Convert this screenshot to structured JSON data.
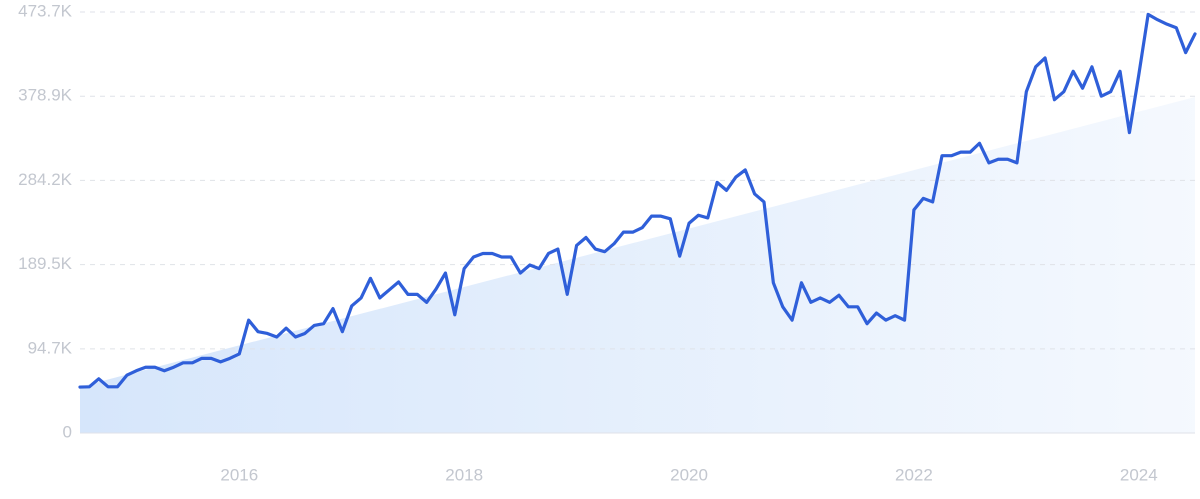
{
  "chart_data": {
    "type": "line",
    "categories": [
      null,
      null,
      null,
      null,
      null,
      null,
      null,
      null,
      null,
      null,
      null,
      null,
      null,
      null,
      null,
      null,
      null,
      "2016",
      null,
      null,
      null,
      null,
      null,
      null,
      null,
      null,
      null,
      null,
      null,
      null,
      null,
      null,
      null,
      null,
      null,
      null,
      null,
      null,
      null,
      null,
      null,
      "2018",
      null,
      null,
      null,
      null,
      null,
      null,
      null,
      null,
      null,
      null,
      null,
      null,
      null,
      null,
      null,
      null,
      null,
      null,
      null,
      null,
      null,
      null,
      null,
      "2020",
      null,
      null,
      null,
      null,
      null,
      null,
      null,
      null,
      null,
      null,
      null,
      null,
      null,
      null,
      null,
      null,
      null,
      null,
      null,
      null,
      null,
      null,
      null,
      "2022",
      null,
      null,
      null,
      null,
      null,
      null,
      null,
      null,
      null,
      null,
      null,
      null,
      null,
      null,
      null,
      null,
      null,
      null,
      null,
      null,
      null,
      null,
      null,
      "2024",
      null,
      null,
      null,
      null,
      null,
      null
    ],
    "series": [
      {
        "color": "#2f5fd9",
        "values": [
          51700,
          52000,
          61000,
          52000,
          52000,
          65000,
          70000,
          74000,
          74000,
          70000,
          74000,
          79000,
          79000,
          84000,
          84000,
          80000,
          84000,
          89000,
          127000,
          114000,
          112000,
          108000,
          118000,
          108000,
          112000,
          121000,
          123000,
          140000,
          114000,
          143000,
          152000,
          174000,
          152000,
          161000,
          170000,
          156000,
          156000,
          147000,
          162000,
          180000,
          133000,
          185000,
          198000,
          202000,
          202000,
          198000,
          198000,
          180000,
          189000,
          185000,
          202000,
          207000,
          156000,
          211000,
          220000,
          207000,
          204000,
          213000,
          226000,
          226000,
          231000,
          244000,
          244000,
          241000,
          199000,
          236000,
          245000,
          242000,
          282000,
          273000,
          288000,
          296000,
          269000,
          260000,
          169000,
          142000,
          127000,
          169000,
          147000,
          152000,
          147000,
          155000,
          142000,
          142000,
          123000,
          135000,
          127000,
          132000,
          127000,
          251000,
          264000,
          260000,
          312000,
          312000,
          316000,
          316000,
          326000,
          304000,
          308000,
          308000,
          304000,
          384000,
          412000,
          422000,
          375000,
          384000,
          407000,
          388000,
          412000,
          379000,
          384000,
          407000,
          338000,
          403000,
          471000,
          465000,
          460000,
          456000,
          428000,
          449000
        ]
      }
    ],
    "trend_values": [
      52000,
      378000
    ],
    "trend_color": "#d6e6fb",
    "ylim": [
      0,
      473700
    ],
    "yticks": [
      0,
      {
        "value": 94700,
        "label": "94.7K"
      },
      {
        "value": 189500,
        "label": "189.5K"
      },
      {
        "value": 284200,
        "label": "284.2K"
      },
      {
        "value": 378900,
        "label": "378.9K"
      },
      {
        "value": 473700,
        "label": "473.7K"
      }
    ],
    "grid": true
  }
}
